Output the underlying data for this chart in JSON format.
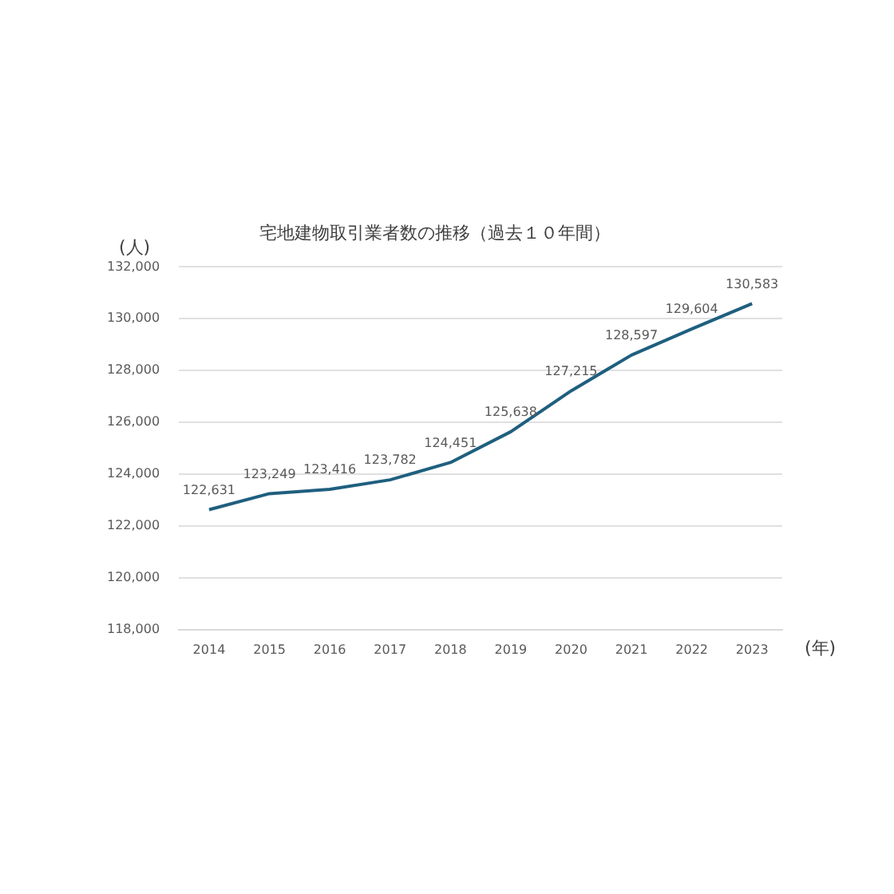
{
  "chart_data": {
    "type": "line",
    "title": "宅地建物取引業者数の推移（過去１０年間）",
    "xlabel": "(年)",
    "ylabel": "(人)",
    "categories": [
      "2014",
      "2015",
      "2016",
      "2017",
      "2018",
      "2019",
      "2020",
      "2021",
      "2022",
      "2023"
    ],
    "series": [
      {
        "color": "#1f5f7f",
        "values": [
          122631,
          123249,
          123416,
          123782,
          124451,
          125638,
          127215,
          128597,
          129604,
          130583
        ],
        "value_labels": [
          "122,631",
          "123,249",
          "123,416",
          "123,782",
          "124,451",
          "125,638",
          "127,215",
          "128,597",
          "129,604",
          "130,583"
        ]
      }
    ],
    "ylim": [
      118000,
      132000
    ],
    "yticks": [
      {
        "value": 118000,
        "label": "118,000"
      },
      {
        "value": 120000,
        "label": "120,000"
      },
      {
        "value": 122000,
        "label": "122,000"
      },
      {
        "value": 124000,
        "label": "124,000"
      },
      {
        "value": 126000,
        "label": "126,000"
      },
      {
        "value": 128000,
        "label": "128,000"
      },
      {
        "value": 130000,
        "label": "130,000"
      },
      {
        "value": 132000,
        "label": "132,000"
      }
    ],
    "grid": "y",
    "legend": false,
    "marker": "none",
    "line_style": "solid"
  }
}
